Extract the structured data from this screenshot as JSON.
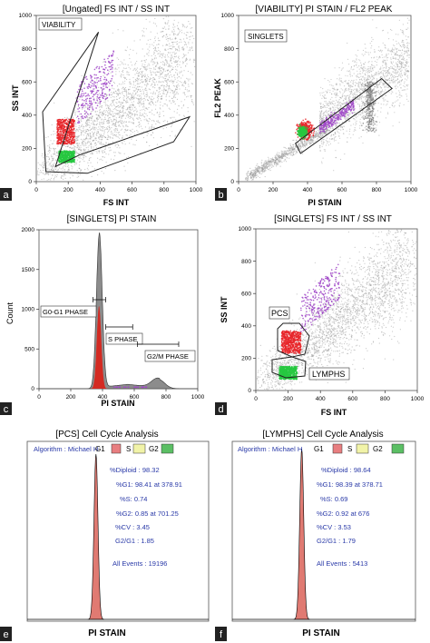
{
  "colors": {
    "cloud": "#9a9a9a",
    "red": "#e8262a",
    "green": "#27c840",
    "purple": "#a24bc9",
    "hist_gray": "#8c8c8c",
    "hist_red": "#d42a22",
    "blue_text": "#2a3aa8",
    "s_box": "#f1f3a8",
    "g2_box": "#5bbf64"
  },
  "chart_data": [
    {
      "panel_letter": "a",
      "type": "scatter",
      "title": "[Ungated] FS INT / SS INT",
      "xlabel": "FS INT",
      "ylabel": "SS INT",
      "xlim": [
        0,
        1000
      ],
      "ylim": [
        0,
        1000
      ],
      "xticks": [
        0,
        200,
        400,
        600,
        800,
        1000
      ],
      "yticks": [
        0,
        200,
        400,
        600,
        800,
        1000
      ],
      "gate_label": "VIABILITY",
      "gate_polygon": [
        [
          120,
          90
        ],
        [
          270,
          160
        ],
        [
          960,
          390
        ],
        [
          860,
          240
        ],
        [
          320,
          50
        ],
        [
          60,
          60
        ],
        [
          40,
          420
        ],
        [
          390,
          900
        ]
      ],
      "populations": [
        {
          "color": "red",
          "center": [
            185,
            300
          ],
          "spread": [
            110,
            150
          ]
        },
        {
          "color": "green",
          "center": [
            190,
            150
          ],
          "spread": [
            100,
            70
          ]
        },
        {
          "color": "purple",
          "center": [
            370,
            560
          ],
          "spread": [
            230,
            250
          ]
        }
      ]
    },
    {
      "panel_letter": "b",
      "type": "scatter",
      "title": "[VIABILITY] PI STAIN / FL2 PEAK",
      "xlabel": "PI STAIN",
      "ylabel": "FL2 PEAK",
      "xlim": [
        0,
        1000
      ],
      "ylim": [
        0,
        1000
      ],
      "xticks": [
        0,
        200,
        400,
        600,
        800,
        1000
      ],
      "yticks": [
        0,
        200,
        400,
        600,
        800,
        1000
      ],
      "gate_label": "SINGLETS",
      "gate_polygon": [
        [
          330,
          230
        ],
        [
          360,
          170
        ],
        [
          890,
          560
        ],
        [
          830,
          620
        ]
      ],
      "populations": [
        {
          "color": "red",
          "center": [
            385,
            310
          ],
          "spread": [
            70,
            80
          ]
        },
        {
          "color": "green",
          "center": [
            370,
            300
          ],
          "spread": [
            40,
            50
          ]
        },
        {
          "color": "purple",
          "center": [
            570,
            390
          ],
          "spread": [
            200,
            90
          ]
        }
      ]
    },
    {
      "panel_letter": "c",
      "type": "histogram",
      "title": "[SINGLETS] PI STAIN",
      "xlabel": "PI STAIN",
      "ylabel": "Count",
      "xlim": [
        0,
        1000
      ],
      "ylim": [
        0,
        2000
      ],
      "xticks": [
        0,
        200,
        400,
        600,
        800,
        1000
      ],
      "yticks": [
        0,
        500,
        1000,
        1500,
        2000
      ],
      "gray_peaks": [
        {
          "center": 380,
          "height": 1950,
          "width": 18
        },
        {
          "center": 750,
          "height": 120,
          "width": 40
        }
      ],
      "red_peak": {
        "center": 378,
        "height": 1040,
        "width": 14
      },
      "s_phase_level": 55,
      "markers": [
        {
          "label": "G0-G1 PHASE",
          "from": 340,
          "to": 420
        },
        {
          "label": "S PHASE",
          "from": 420,
          "to": 590
        },
        {
          "label": "G2/M PHASE",
          "from": 620,
          "to": 880
        }
      ]
    },
    {
      "panel_letter": "d",
      "type": "scatter",
      "title": "[SINGLETS] FS INT / SS INT",
      "xlabel": "FS INT",
      "ylabel": "SS INT",
      "xlim": [
        0,
        1000
      ],
      "ylim": [
        0,
        1000
      ],
      "xticks": [
        0,
        200,
        400,
        600,
        800,
        1000
      ],
      "yticks": [
        0,
        200,
        400,
        600,
        800,
        1000
      ],
      "gate_labels": [
        "PCS",
        "LYMPHS"
      ],
      "populations": [
        {
          "color": "red",
          "center": [
            220,
            300
          ],
          "spread": [
            120,
            140
          ]
        },
        {
          "color": "green",
          "center": [
            200,
            110
          ],
          "spread": [
            110,
            80
          ]
        },
        {
          "color": "purple",
          "center": [
            400,
            570
          ],
          "spread": [
            240,
            230
          ]
        }
      ]
    },
    {
      "panel_letter": "e",
      "type": "histogram",
      "title": "[PCS] Cell Cycle Analysis",
      "xlabel": "PI STAIN",
      "peak_center": 379,
      "legend_algorithm": "Algorithm : Michael H",
      "legend_keys": [
        "G1",
        "S",
        "G2"
      ],
      "stats": [
        "%Diploid : 98.32",
        "%G1: 98.41 at 378.91",
        "%S: 0.74",
        "%G2: 0.85 at 701.25",
        "%CV : 3.45",
        "G2/G1 : 1.85",
        "All Events : 19196"
      ]
    },
    {
      "panel_letter": "f",
      "type": "histogram",
      "title": "[LYMPHS] Cell Cycle Analysis",
      "xlabel": "PI STAIN",
      "peak_center": 379,
      "legend_algorithm": "Algorithm : Michael H",
      "legend_keys": [
        "G1",
        "S",
        "G2"
      ],
      "stats": [
        "%Diploid : 98.64",
        "%G1: 98.39 at 378.71",
        "%S: 0.69",
        "%G2: 0.92 at 676",
        "%CV : 3.53",
        "G2/G1 : 1.79",
        "All Events : 5413"
      ]
    }
  ]
}
